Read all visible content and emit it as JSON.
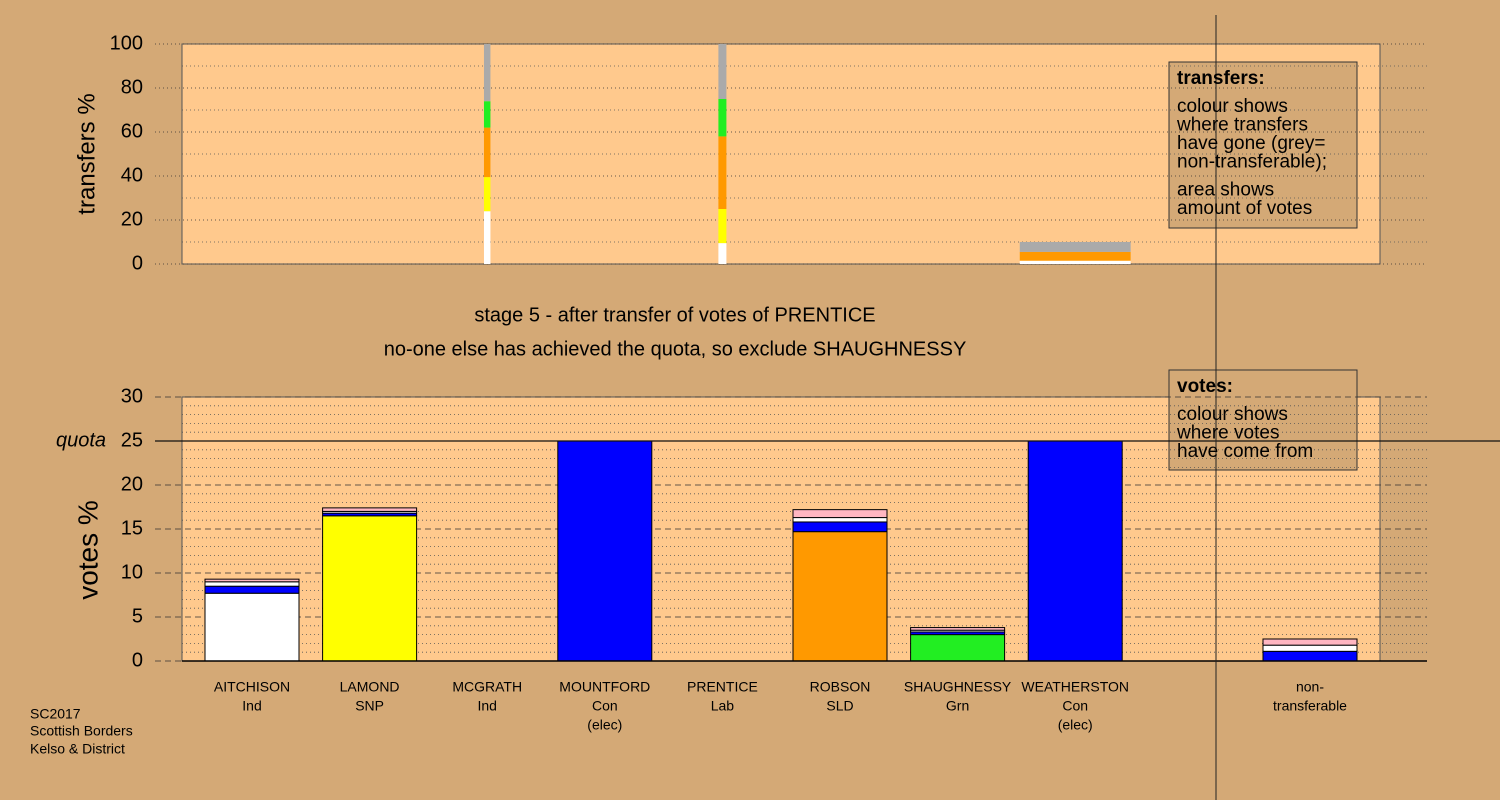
{
  "footer": [
    "SC2017",
    "Scottish Borders",
    "Kelso & District"
  ],
  "chart_data": [
    {
      "type": "bar",
      "stacked": true,
      "ylabel": "transfers %",
      "ylim": [
        0,
        100
      ],
      "yticks": [
        0,
        20,
        40,
        60,
        80,
        100
      ],
      "minor_yticks": [
        10,
        30,
        50,
        70,
        90
      ],
      "amounts": [
        null,
        null,
        2.1,
        null,
        2.6,
        null,
        null,
        3.6,
        null
      ],
      "series": [
        {
          "color": "#ffffff",
          "values": [
            null,
            null,
            24,
            null,
            9.5,
            null,
            null,
            1.5,
            null
          ]
        },
        {
          "color": "#ffff00",
          "values": [
            null,
            null,
            15.5,
            null,
            15.5,
            null,
            null,
            0,
            null
          ]
        },
        {
          "color": "#ff9900",
          "values": [
            null,
            null,
            22.5,
            null,
            33,
            null,
            null,
            4,
            null
          ]
        },
        {
          "color": "#22ee22",
          "values": [
            null,
            null,
            12,
            null,
            17,
            null,
            null,
            0,
            null
          ]
        },
        {
          "color": "#aaaaaa",
          "values": [
            null,
            null,
            26,
            null,
            25,
            null,
            null,
            4.5,
            null
          ]
        }
      ],
      "note": {
        "heading": "transfers:",
        "paragraphs": [
          [
            "colour shows",
            "where transfers",
            "have gone (grey=",
            "non-transferable);"
          ],
          [
            "area shows",
            "amount of votes"
          ]
        ]
      }
    },
    {
      "type": "bar",
      "stacked": true,
      "title": "stage 5 - after transfer of votes of PRENTICE",
      "subtitle": "no-one else has achieved the quota, so exclude SHAUGHNESSY",
      "ylabel": "votes %",
      "ylim": [
        0,
        30
      ],
      "yticks": [
        0,
        5,
        10,
        15,
        20,
        25,
        30
      ],
      "minor_yticks": [
        1,
        2,
        3,
        4,
        6,
        7,
        8,
        9,
        11,
        12,
        13,
        14,
        16,
        17,
        18,
        19,
        21,
        22,
        23,
        24,
        26,
        27,
        28,
        29
      ],
      "quota": 25,
      "quota_label": "quota",
      "categories": [
        [
          "AITCHISON",
          "Ind"
        ],
        [
          "LAMOND",
          "SNP"
        ],
        [
          "MCGRATH",
          "Ind"
        ],
        [
          "MOUNTFORD",
          "Con",
          "(elec)"
        ],
        [
          "PRENTICE",
          "Lab"
        ],
        [
          "ROBSON",
          "SLD"
        ],
        [
          "SHAUGHNESSY",
          "Grn"
        ],
        [
          "WEATHERSTON",
          "Con",
          "(elec)"
        ],
        [
          "non-",
          "transferable"
        ]
      ],
      "series": [
        {
          "colors": [
            "#ffffff",
            "#ffff00",
            "#ffffff",
            "#0000ff",
            "#ffb6c1",
            "#ff9900",
            "#22ee22",
            "#0000ff",
            "#ffffff"
          ],
          "values": [
            7.7,
            16.5,
            0,
            25,
            0,
            14.7,
            3.0,
            25,
            0
          ]
        },
        {
          "color": "#0000ff",
          "values": [
            0.8,
            0.3,
            0,
            0,
            0,
            1.1,
            0.3,
            0,
            1.1
          ]
        },
        {
          "color": "#ffffff",
          "values": [
            0.5,
            0.2,
            0,
            0,
            0,
            0.5,
            0.2,
            0,
            0.7
          ]
        },
        {
          "color": "#ffb6c1",
          "values": [
            0.3,
            0.4,
            0,
            0,
            0,
            0.9,
            0.3,
            0,
            0.7
          ]
        }
      ],
      "note": {
        "heading": "votes:",
        "paragraphs": [
          [
            "colour shows",
            "where votes",
            "have come from"
          ]
        ]
      }
    }
  ]
}
